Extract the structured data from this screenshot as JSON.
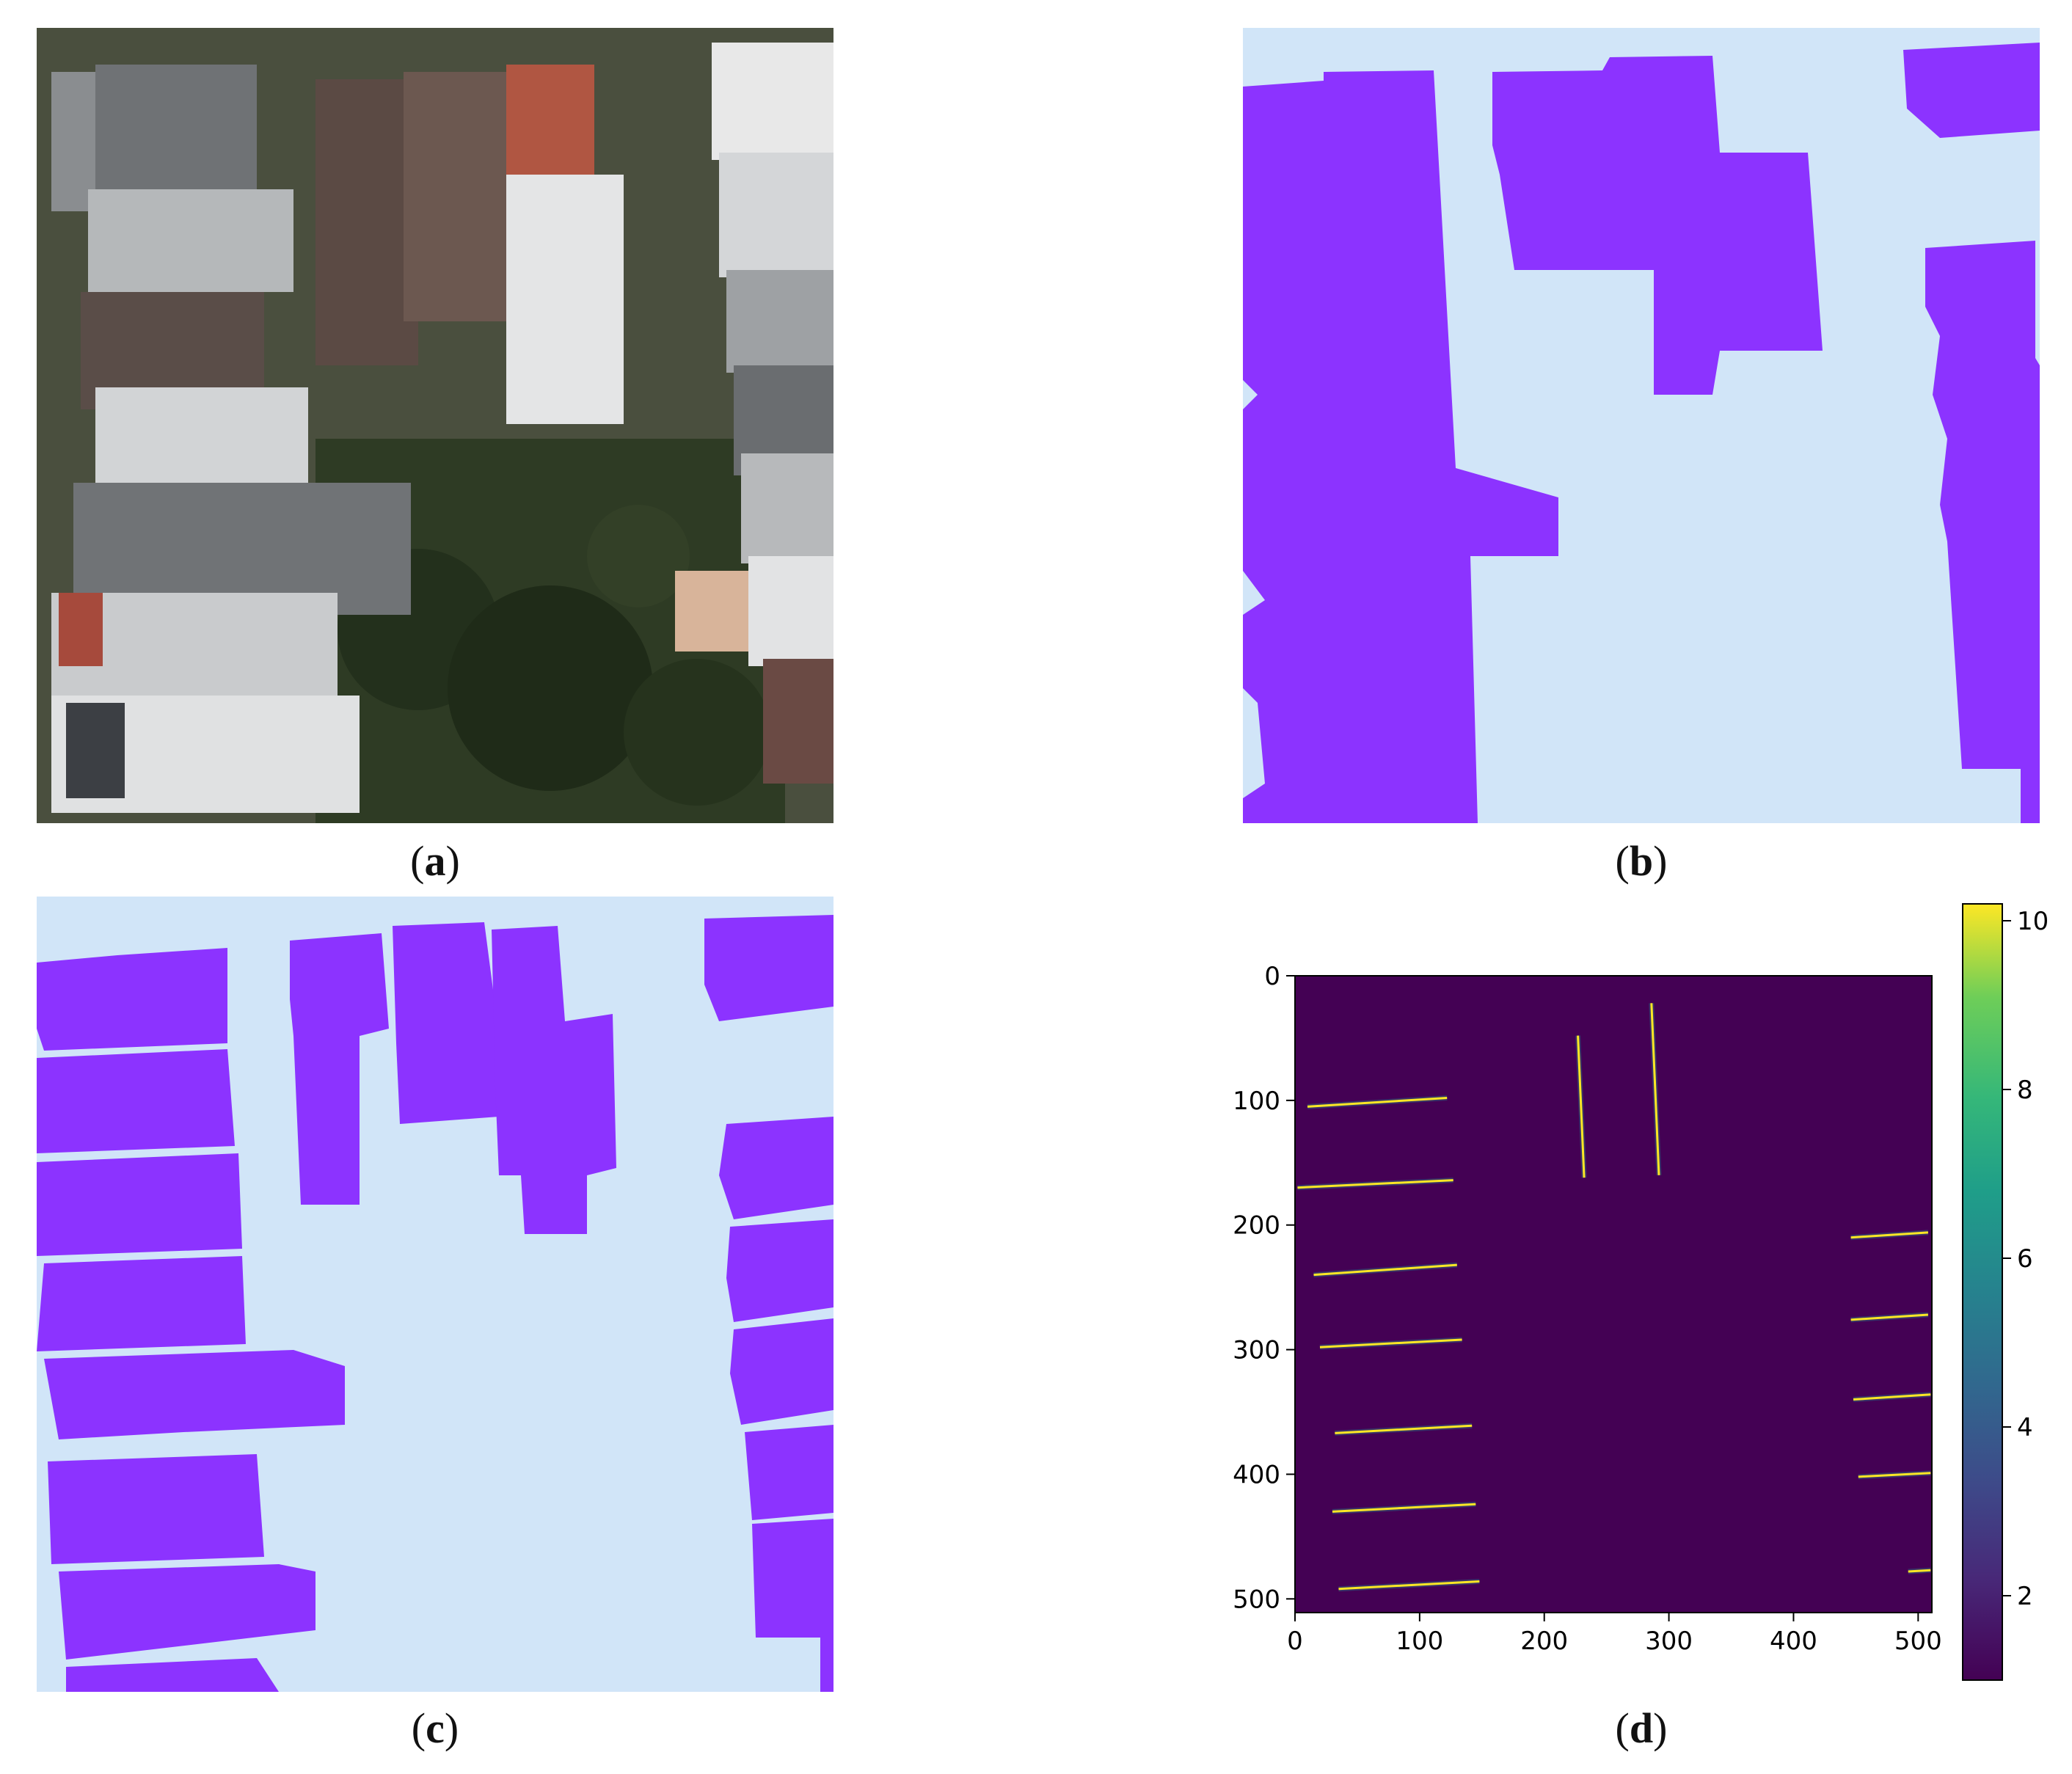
{
  "captions": {
    "a": {
      "open": "(",
      "letter": "a",
      "close": ")"
    },
    "b": {
      "open": "(",
      "letter": "b",
      "close": ")"
    },
    "c": {
      "open": "(",
      "letter": "c",
      "close": ")"
    },
    "d": {
      "open": "(",
      "letter": "d",
      "close": ")"
    }
  },
  "colors": {
    "building": "#8c33ff",
    "background": "#d1e5f8",
    "heat_bg": "#440154",
    "line": "#fde725"
  },
  "chart_data": {
    "type": "heatmap",
    "title": "",
    "xlabel": "",
    "ylabel": "",
    "xlim": [
      0,
      511
    ],
    "ylim": [
      511,
      0
    ],
    "xticks": [
      "0",
      "100",
      "200",
      "300",
      "400",
      "500"
    ],
    "yticks": [
      "0",
      "100",
      "200",
      "300",
      "400",
      "500"
    ],
    "colorbar": {
      "range": [
        1,
        10.2
      ],
      "ticks": [
        "2",
        "4",
        "6",
        "8",
        "10"
      ],
      "colormap": "viridis"
    },
    "segments": [
      {
        "x1": 10,
        "y1": 105,
        "x2": 122,
        "y2": 98
      },
      {
        "x1": 2,
        "y1": 170,
        "x2": 127,
        "y2": 164
      },
      {
        "x1": 15,
        "y1": 240,
        "x2": 130,
        "y2": 232
      },
      {
        "x1": 20,
        "y1": 298,
        "x2": 134,
        "y2": 292
      },
      {
        "x1": 32,
        "y1": 367,
        "x2": 142,
        "y2": 361
      },
      {
        "x1": 30,
        "y1": 430,
        "x2": 145,
        "y2": 424
      },
      {
        "x1": 35,
        "y1": 492,
        "x2": 148,
        "y2": 486
      },
      {
        "x1": 227,
        "y1": 48,
        "x2": 232,
        "y2": 162
      },
      {
        "x1": 286,
        "y1": 22,
        "x2": 292,
        "y2": 160
      },
      {
        "x1": 446,
        "y1": 210,
        "x2": 508,
        "y2": 206
      },
      {
        "x1": 446,
        "y1": 276,
        "x2": 508,
        "y2": 272
      },
      {
        "x1": 448,
        "y1": 340,
        "x2": 510,
        "y2": 336
      },
      {
        "x1": 452,
        "y1": 402,
        "x2": 510,
        "y2": 399
      },
      {
        "x1": 492,
        "y1": 478,
        "x2": 510,
        "y2": 477
      }
    ]
  }
}
